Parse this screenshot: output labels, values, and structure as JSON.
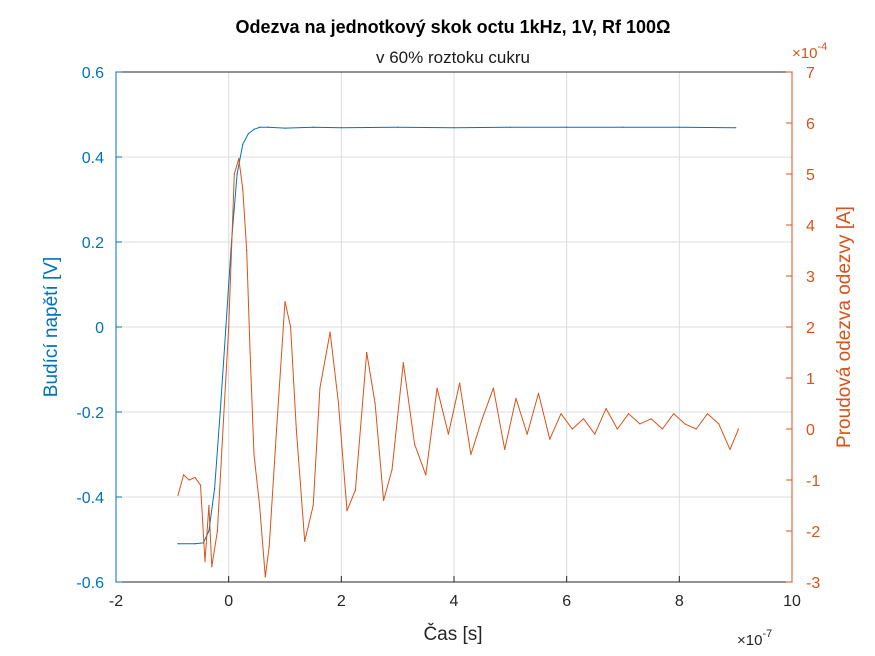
{
  "chart_data": {
    "type": "line",
    "title": "Odezva na jednotkový skok octu 1kHz, 1V, Rf 100Ω",
    "subtitle": "v 60% roztoku cukru",
    "xlabel": "Čas [s]",
    "x_exponent_base": "×10",
    "x_exponent_power": "-7",
    "xlim": [
      -2,
      10
    ],
    "x_ticks": [
      "-2",
      "0",
      "2",
      "4",
      "6",
      "8",
      "10"
    ],
    "x_tick_values": [
      -2,
      0,
      2,
      4,
      6,
      8,
      10
    ],
    "grid": true,
    "y_left": {
      "label": "Budící napětí [V]",
      "ylim": [
        -0.6,
        0.6
      ],
      "ticks": [
        "0.6",
        "0.4",
        "0.2",
        "0",
        "-0.2",
        "-0.4",
        "-0.6"
      ],
      "tick_values": [
        0.6,
        0.4,
        0.2,
        0,
        -0.2,
        -0.4,
        -0.6
      ],
      "color": "#0072BD"
    },
    "y_right": {
      "label": "Proudová odezva odezvy [A]",
      "exponent_base": "×10",
      "exponent_power": "-4",
      "ylim": [
        -3,
        7
      ],
      "ticks": [
        "7",
        "6",
        "5",
        "4",
        "3",
        "2",
        "1",
        "0",
        "-1",
        "-2",
        "-3"
      ],
      "tick_values": [
        7,
        6,
        5,
        4,
        3,
        2,
        1,
        0,
        -1,
        -2,
        -3
      ],
      "color": "#D95319"
    },
    "series": [
      {
        "axis": "left",
        "color": "#0072BD",
        "x": [
          -0.9,
          -0.6,
          -0.45,
          -0.35,
          -0.25,
          -0.15,
          -0.05,
          0.05,
          0.15,
          0.25,
          0.35,
          0.45,
          0.55,
          0.7,
          1.0,
          1.5,
          2.0,
          3.0,
          4.0,
          5.0,
          6.0,
          7.0,
          8.0,
          9.0
        ],
        "values": [
          -0.51,
          -0.51,
          -0.508,
          -0.48,
          -0.38,
          -0.2,
          0.0,
          0.2,
          0.36,
          0.43,
          0.455,
          0.465,
          0.47,
          0.47,
          0.468,
          0.47,
          0.469,
          0.47,
          0.469,
          0.47,
          0.47,
          0.47,
          0.47,
          0.469
        ]
      },
      {
        "axis": "right",
        "color": "#D95319",
        "x": [
          -0.9,
          -0.8,
          -0.7,
          -0.6,
          -0.5,
          -0.42,
          -0.35,
          -0.3,
          -0.2,
          -0.1,
          0.0,
          0.1,
          0.18,
          0.25,
          0.32,
          0.38,
          0.45,
          0.55,
          0.65,
          0.72,
          0.85,
          1.0,
          1.1,
          1.2,
          1.35,
          1.5,
          1.62,
          1.8,
          1.95,
          2.1,
          2.25,
          2.45,
          2.6,
          2.75,
          2.9,
          3.1,
          3.3,
          3.5,
          3.7,
          3.9,
          4.1,
          4.3,
          4.5,
          4.7,
          4.9,
          5.1,
          5.3,
          5.5,
          5.7,
          5.9,
          6.1,
          6.3,
          6.5,
          6.7,
          6.9,
          7.1,
          7.3,
          7.5,
          7.7,
          7.9,
          8.1,
          8.3,
          8.5,
          8.7,
          8.9,
          9.05
        ],
        "values": [
          -1.3,
          -0.9,
          -1.0,
          -0.95,
          -1.1,
          -2.6,
          -1.5,
          -2.7,
          -2.0,
          0.0,
          2.0,
          5.0,
          5.3,
          4.7,
          3.5,
          1.5,
          -0.5,
          -1.5,
          -2.9,
          -2.3,
          0.0,
          2.5,
          2.0,
          0.0,
          -2.2,
          -1.5,
          0.8,
          1.9,
          0.5,
          -1.6,
          -1.2,
          1.5,
          0.5,
          -1.4,
          -0.8,
          1.3,
          -0.3,
          -0.9,
          0.8,
          -0.1,
          0.9,
          -0.5,
          0.2,
          0.8,
          -0.4,
          0.6,
          -0.1,
          0.7,
          -0.2,
          0.3,
          0.0,
          0.2,
          -0.1,
          0.4,
          0.0,
          0.3,
          0.1,
          0.2,
          0.0,
          0.3,
          0.1,
          0.0,
          0.3,
          0.1,
          -0.4,
          0.0
        ]
      }
    ]
  }
}
